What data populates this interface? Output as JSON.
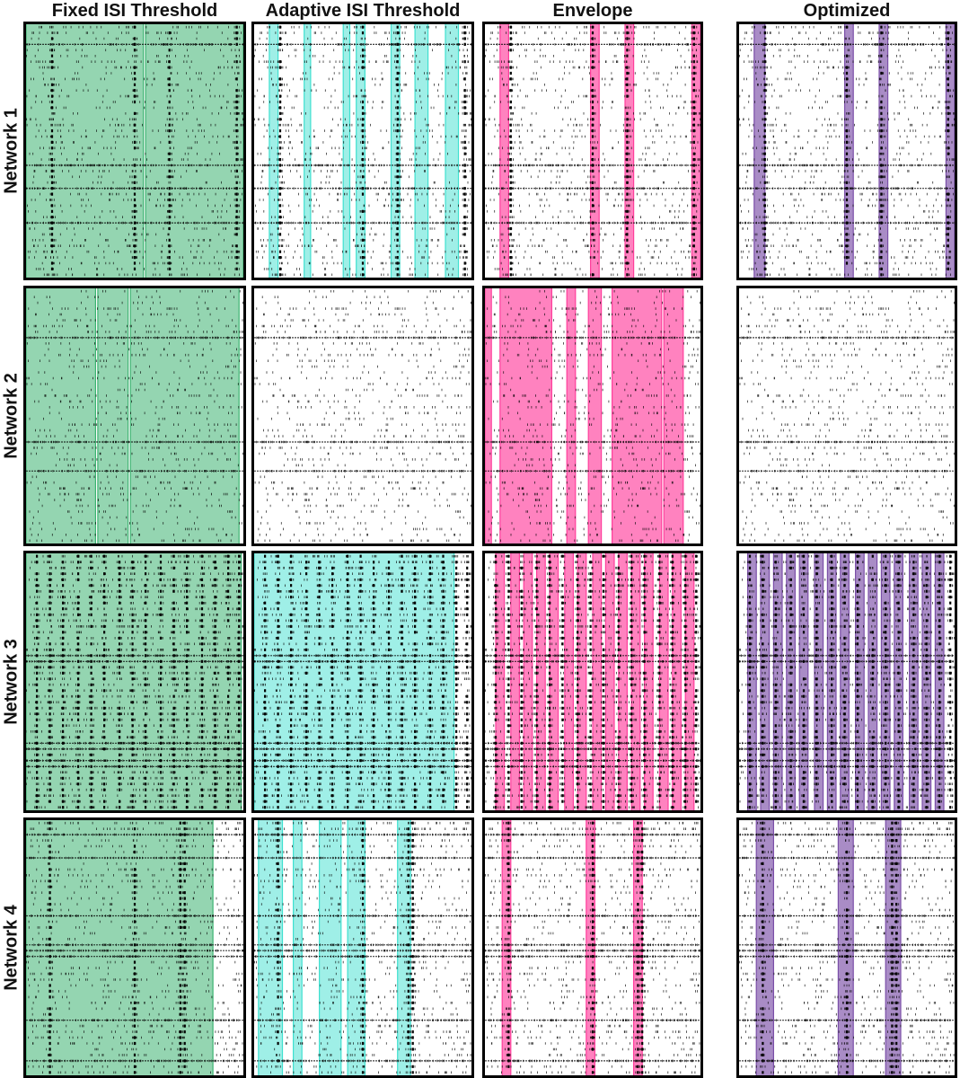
{
  "columns": [
    {
      "key": "fixed",
      "title": "Fixed ISI Threshold",
      "color": "#3cb371",
      "fill_opacity": 0.55
    },
    {
      "key": "adaptive",
      "title": "Adaptive ISI Threshold",
      "color": "#40e0d0",
      "fill_opacity": 0.5
    },
    {
      "key": "envelope",
      "title": "Envelope",
      "color": "#ff3f9c",
      "fill_opacity": 0.65
    },
    {
      "key": "optimized",
      "title": "Optimized",
      "color": "#7b4fa8",
      "fill_opacity": 0.65
    }
  ],
  "rows": [
    {
      "label": "Network 1"
    },
    {
      "label": "Network 2"
    },
    {
      "label": "Network 3"
    },
    {
      "label": "Network 4"
    }
  ],
  "chart_data": {
    "type": "raster",
    "x_range": [
      0,
      1
    ],
    "y_range": [
      0,
      1
    ],
    "networks": [
      {
        "name": "Network 1",
        "burst_times": [
          0.12,
          0.5,
          0.66,
          0.97
        ],
        "dense_rows": [
          0.08,
          0.55,
          0.65,
          0.78
        ],
        "detections": {
          "fixed": [
            [
              0.0,
              0.54
            ],
            [
              0.55,
              1.0
            ]
          ],
          "adaptive": [
            [
              0.07,
              0.11
            ],
            [
              0.23,
              0.26
            ],
            [
              0.41,
              0.44
            ],
            [
              0.47,
              0.51
            ],
            [
              0.63,
              0.67
            ],
            [
              0.74,
              0.8
            ],
            [
              0.88,
              0.94
            ]
          ],
          "envelope": [
            [
              0.07,
              0.11
            ],
            [
              0.49,
              0.53
            ],
            [
              0.65,
              0.69
            ],
            [
              0.96,
              1.0
            ]
          ],
          "optimized": [
            [
              0.07,
              0.12
            ],
            [
              0.49,
              0.53
            ],
            [
              0.65,
              0.69
            ],
            [
              0.96,
              1.0
            ]
          ]
        }
      },
      {
        "name": "Network 2",
        "burst_times": [],
        "dense_rows": [
          0.2,
          0.6,
          0.72
        ],
        "detections": {
          "fixed": [
            [
              0.0,
              0.32
            ],
            [
              0.33,
              0.47
            ],
            [
              0.48,
              0.98
            ]
          ],
          "adaptive": [],
          "envelope": [
            [
              0.0,
              0.03
            ],
            [
              0.07,
              0.31
            ],
            [
              0.38,
              0.42
            ],
            [
              0.48,
              0.54
            ],
            [
              0.59,
              0.82
            ],
            [
              0.83,
              0.92
            ]
          ],
          "optimized": []
        }
      },
      {
        "name": "Network 3",
        "burst_times": [
          0.05,
          0.11,
          0.17,
          0.24,
          0.3,
          0.36,
          0.43,
          0.49,
          0.55,
          0.62,
          0.68,
          0.74,
          0.81,
          0.87,
          0.93,
          0.98
        ],
        "dense_rows": [
          0.41,
          0.75,
          0.82
        ],
        "detections": {
          "fixed": [
            [
              0.0,
              0.99
            ]
          ],
          "adaptive": [
            [
              0.0,
              0.92
            ]
          ],
          "envelope": [
            [
              0.05,
              0.09
            ],
            [
              0.12,
              0.16
            ],
            [
              0.18,
              0.22
            ],
            [
              0.24,
              0.28
            ],
            [
              0.3,
              0.34
            ],
            [
              0.37,
              0.41
            ],
            [
              0.43,
              0.47
            ],
            [
              0.5,
              0.54
            ],
            [
              0.56,
              0.6
            ],
            [
              0.62,
              0.66
            ],
            [
              0.68,
              0.72
            ],
            [
              0.74,
              0.78
            ],
            [
              0.81,
              0.85
            ],
            [
              0.87,
              0.91
            ],
            [
              0.93,
              0.97
            ]
          ],
          "optimized": [
            [
              0.04,
              0.08
            ],
            [
              0.1,
              0.14
            ],
            [
              0.16,
              0.2
            ],
            [
              0.22,
              0.26
            ],
            [
              0.28,
              0.32
            ],
            [
              0.35,
              0.39
            ],
            [
              0.41,
              0.45
            ],
            [
              0.47,
              0.51
            ],
            [
              0.54,
              0.58
            ],
            [
              0.6,
              0.64
            ],
            [
              0.66,
              0.7
            ],
            [
              0.72,
              0.76
            ],
            [
              0.79,
              0.83
            ],
            [
              0.85,
              0.89
            ],
            [
              0.91,
              0.95
            ]
          ]
        }
      },
      {
        "name": "Network 4",
        "burst_times": [
          0.11,
          0.5,
          0.71,
          0.73
        ],
        "dense_rows": [
          0.06,
          0.15,
          0.38,
          0.5,
          0.54,
          0.79,
          0.95
        ],
        "detections": {
          "fixed": [
            [
              0.0,
              0.86
            ]
          ],
          "adaptive": [
            [
              0.02,
              0.13
            ],
            [
              0.18,
              0.22
            ],
            [
              0.3,
              0.4
            ],
            [
              0.43,
              0.51
            ],
            [
              0.66,
              0.72
            ]
          ],
          "envelope": [
            [
              0.08,
              0.12
            ],
            [
              0.47,
              0.51
            ],
            [
              0.69,
              0.73
            ]
          ],
          "optimized": [
            [
              0.08,
              0.16
            ],
            [
              0.46,
              0.53
            ],
            [
              0.68,
              0.75
            ]
          ]
        }
      }
    ]
  }
}
